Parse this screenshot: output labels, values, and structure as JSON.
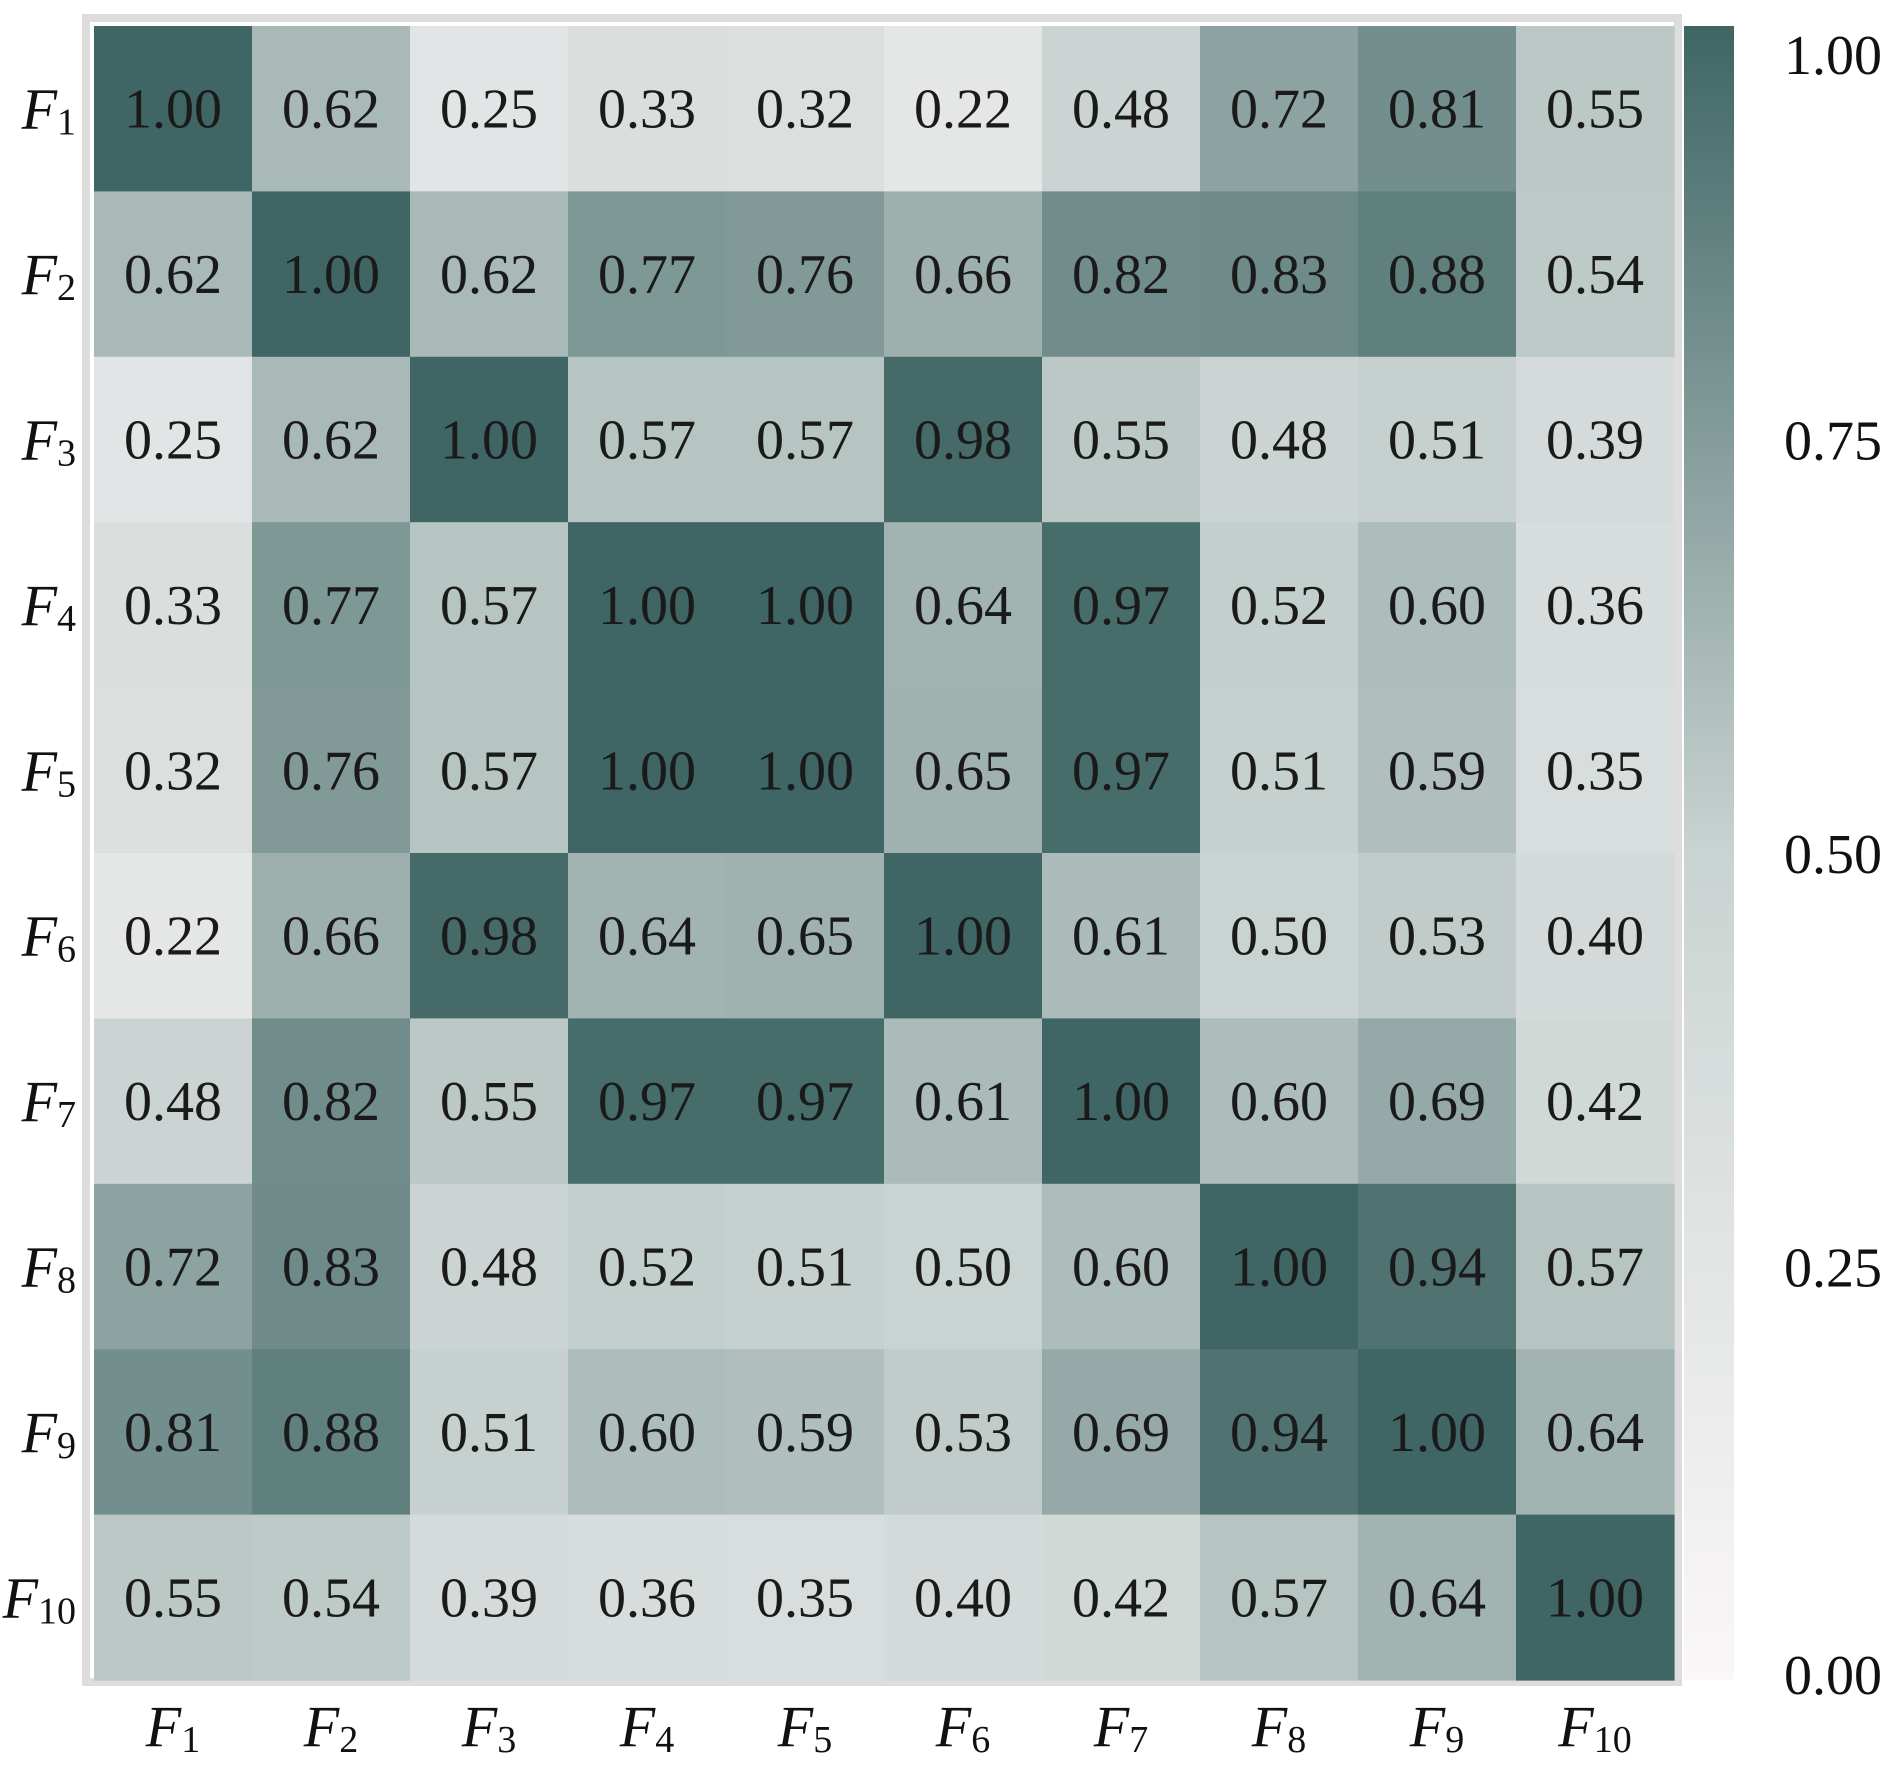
{
  "chart_data": {
    "type": "heatmap",
    "title": "",
    "xlabel": "",
    "ylabel": "",
    "x_labels": [
      {
        "base": "F",
        "sub": "1"
      },
      {
        "base": "F",
        "sub": "2"
      },
      {
        "base": "F",
        "sub": "3"
      },
      {
        "base": "F",
        "sub": "4"
      },
      {
        "base": "F",
        "sub": "5"
      },
      {
        "base": "F",
        "sub": "6"
      },
      {
        "base": "F",
        "sub": "7"
      },
      {
        "base": "F",
        "sub": "8"
      },
      {
        "base": "F",
        "sub": "9"
      },
      {
        "base": "F",
        "sub": "10"
      }
    ],
    "y_labels": [
      {
        "base": "F",
        "sub": "1"
      },
      {
        "base": "F",
        "sub": "2"
      },
      {
        "base": "F",
        "sub": "3"
      },
      {
        "base": "F",
        "sub": "4"
      },
      {
        "base": "F",
        "sub": "5"
      },
      {
        "base": "F",
        "sub": "6"
      },
      {
        "base": "F",
        "sub": "7"
      },
      {
        "base": "F",
        "sub": "8"
      },
      {
        "base": "F",
        "sub": "9"
      },
      {
        "base": "F",
        "sub": "10"
      }
    ],
    "values": [
      [
        1.0,
        0.62,
        0.25,
        0.33,
        0.32,
        0.22,
        0.48,
        0.72,
        0.81,
        0.55
      ],
      [
        0.62,
        1.0,
        0.62,
        0.77,
        0.76,
        0.66,
        0.82,
        0.83,
        0.88,
        0.54
      ],
      [
        0.25,
        0.62,
        1.0,
        0.57,
        0.57,
        0.98,
        0.55,
        0.48,
        0.51,
        0.39
      ],
      [
        0.33,
        0.77,
        0.57,
        1.0,
        1.0,
        0.64,
        0.97,
        0.52,
        0.6,
        0.36
      ],
      [
        0.32,
        0.76,
        0.57,
        1.0,
        1.0,
        0.65,
        0.97,
        0.51,
        0.59,
        0.35
      ],
      [
        0.22,
        0.66,
        0.98,
        0.64,
        0.65,
        1.0,
        0.61,
        0.5,
        0.53,
        0.4
      ],
      [
        0.48,
        0.82,
        0.55,
        0.97,
        0.97,
        0.61,
        1.0,
        0.6,
        0.69,
        0.42
      ],
      [
        0.72,
        0.83,
        0.48,
        0.52,
        0.51,
        0.5,
        0.6,
        1.0,
        0.94,
        0.57
      ],
      [
        0.81,
        0.88,
        0.51,
        0.6,
        0.59,
        0.53,
        0.69,
        0.94,
        1.0,
        0.64
      ],
      [
        0.55,
        0.54,
        0.39,
        0.36,
        0.35,
        0.4,
        0.42,
        0.57,
        0.64,
        1.0
      ]
    ],
    "colorbar": {
      "range": [
        0.0,
        1.0
      ],
      "ticks": [
        "1.00",
        "0.75",
        "0.50",
        "0.25",
        "0.00"
      ],
      "tick_values": [
        1.0,
        0.75,
        0.5,
        0.25,
        0.0
      ]
    },
    "colors": {
      "low": "#fbf7f8",
      "mid": "#c9d3d1",
      "high": "#3f6664",
      "text": "#1a1a1a",
      "frame": "#dddddd"
    },
    "grid": false,
    "legend": "right"
  }
}
